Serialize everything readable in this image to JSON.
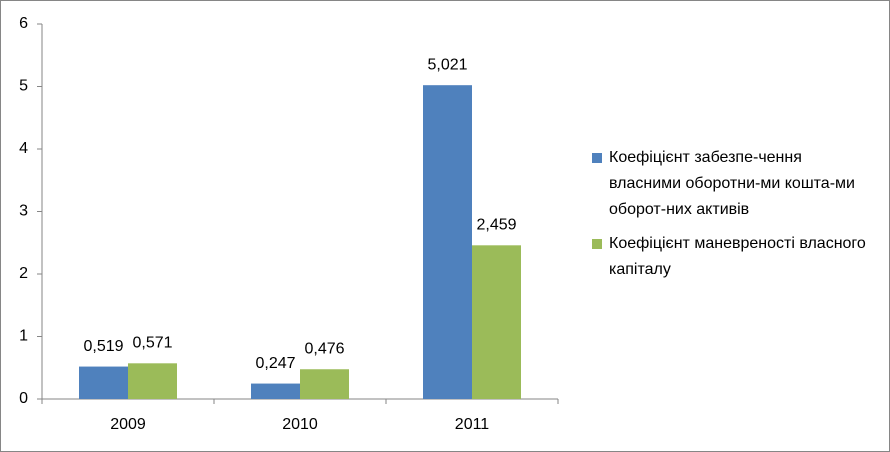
{
  "chart_data": {
    "type": "bar",
    "categories": [
      "2009",
      "2010",
      "2011"
    ],
    "series": [
      {
        "name": "Коефіцієнт забезпе-чення власними оборотни-ми кошта-ми оборот-них активів",
        "color": "#4f81bd",
        "values": [
          0.519,
          0.247,
          5.021
        ],
        "value_labels": [
          "0,519",
          "0,247",
          "5,021"
        ]
      },
      {
        "name": "Коефіцієнт маневреності власного капіталу",
        "color": "#9bbb59",
        "values": [
          0.571,
          0.476,
          2.459
        ],
        "value_labels": [
          "0,571",
          "0,476",
          "2,459"
        ]
      }
    ],
    "ylim": [
      0,
      6
    ],
    "yticks": [
      0,
      1,
      2,
      3,
      4,
      5,
      6
    ],
    "grid": false,
    "legend": "right"
  }
}
